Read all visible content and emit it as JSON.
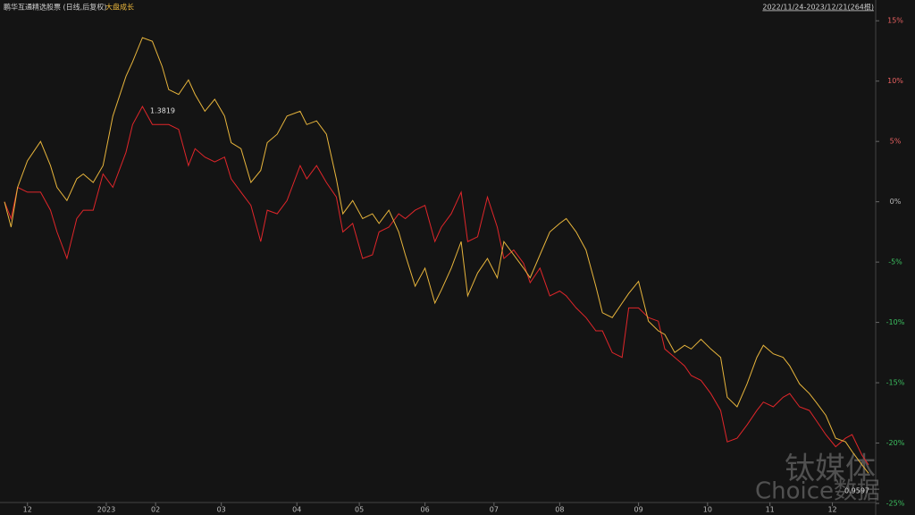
{
  "chart_data": {
    "type": "line",
    "title": "鹏华互通精选股票 (日线,后复权)",
    "range_label": "2022/11/24-2023/12/21(264根)",
    "annotations": [
      "1.3819",
      "0.9597"
    ],
    "watermark": [
      "钛媒体",
      "Choice数据"
    ],
    "x": [
      0,
      2,
      4,
      7,
      11,
      14,
      16,
      19,
      22,
      24,
      27,
      30,
      33,
      37,
      39,
      42,
      45,
      48,
      50,
      53,
      56,
      58,
      61,
      64,
      67,
      69,
      72,
      75,
      78,
      80,
      83,
      86,
      90,
      92,
      95,
      98,
      101,
      103,
      106,
      109,
      112,
      114,
      117,
      120,
      122,
      125,
      128,
      131,
      133,
      136,
      139,
      141,
      144,
      147,
      150,
      152,
      155,
      158,
      160,
      163,
      166,
      169,
      171,
      174,
      177,
      180,
      182,
      185,
      188,
      190,
      193,
      196,
      199,
      201,
      204,
      207,
      209,
      212,
      215,
      218,
      220,
      223,
      226,
      229,
      231,
      234,
      237,
      239,
      242,
      245,
      247,
      250,
      253,
      256,
      258,
      261,
      263
    ],
    "series": [
      {
        "name": "大盘成长",
        "color": "#e8b53c",
        "values": [
          0,
          -2.1,
          1.2,
          3.4,
          5.0,
          3,
          1.2,
          0.1,
          1.9,
          2.3,
          1.6,
          3,
          7.1,
          10.4,
          11.6,
          13.6,
          13.3,
          11.2,
          9.3,
          8.9,
          10.1,
          8.9,
          7.5,
          8.5,
          7.1,
          4.9,
          4.4,
          1.6,
          2.6,
          4.9,
          5.6,
          7.1,
          7.5,
          6.4,
          6.7,
          5.6,
          1.9,
          -1,
          0.1,
          -1.4,
          -1,
          -1.8,
          -0.7,
          -2.5,
          -4.4,
          -7,
          -5.5,
          -8.4,
          -7.3,
          -5.5,
          -3.3,
          -7.8,
          -5.9,
          -4.7,
          -6.3,
          -3.3,
          -4.4,
          -5.5,
          -6.3,
          -4.4,
          -2.5,
          -1.8,
          -1.4,
          -2.5,
          -4,
          -7,
          -9.2,
          -9.6,
          -8.4,
          -7.6,
          -6.6,
          -9.9,
          -10.7,
          -11,
          -12.5,
          -11.9,
          -12.2,
          -11.4,
          -12.2,
          -12.9,
          -16.2,
          -17,
          -15.1,
          -12.9,
          -11.9,
          -12.6,
          -12.9,
          -13.6,
          -15.1,
          -15.9,
          -16.6,
          -17.7,
          -19.6,
          -19.9,
          -20.7,
          -21.8,
          -22.5
        ]
      },
      {
        "name": "鹏华互通精选股票",
        "color": "#e0262a",
        "values": [
          0,
          -1.4,
          1.2,
          0.8,
          0.8,
          -0.7,
          -2.5,
          -4.7,
          -1.4,
          -0.7,
          -0.7,
          2.3,
          1.2,
          4.1,
          6.4,
          7.9,
          6.4,
          6.4,
          6.4,
          6,
          3,
          4.4,
          3.7,
          3.3,
          3.7,
          1.9,
          0.8,
          -0.3,
          -3.3,
          -0.7,
          -1,
          0.1,
          3,
          1.9,
          3,
          1.6,
          0.4,
          -2.5,
          -1.8,
          -4.7,
          -4.4,
          -2.5,
          -2.1,
          -1,
          -1.4,
          -0.7,
          -0.3,
          -3.3,
          -2.1,
          -1,
          0.8,
          -3.3,
          -2.9,
          0.4,
          -2.1,
          -4.7,
          -4,
          -5.1,
          -6.7,
          -5.5,
          -7.8,
          -7.4,
          -7.8,
          -8.8,
          -9.6,
          -10.7,
          -10.7,
          -12.5,
          -12.9,
          -8.8,
          -8.8,
          -9.6,
          -9.9,
          -12.2,
          -12.9,
          -13.6,
          -14.4,
          -14.8,
          -15.9,
          -17.3,
          -19.9,
          -19.6,
          -18.5,
          -17.3,
          -16.6,
          -17,
          -16.2,
          -15.9,
          -17,
          -17.3,
          -18.1,
          -19.3,
          -20.3,
          -19.6,
          -19.3,
          -21,
          -21.8
        ]
      }
    ],
    "xlim": [
      0,
      263
    ],
    "xticks": [
      {
        "value": 7,
        "label": "12"
      },
      {
        "value": 31,
        "label": "2023"
      },
      {
        "value": 46,
        "label": "02"
      },
      {
        "value": 66,
        "label": "03"
      },
      {
        "value": 89,
        "label": "04"
      },
      {
        "value": 108,
        "label": "05"
      },
      {
        "value": 128,
        "label": "06"
      },
      {
        "value": 149,
        "label": "07"
      },
      {
        "value": 169,
        "label": "08"
      },
      {
        "value": 193,
        "label": "09"
      },
      {
        "value": 214,
        "label": "10"
      },
      {
        "value": 233,
        "label": "11"
      },
      {
        "value": 252,
        "label": "12"
      }
    ],
    "ylim": [
      -25,
      16.5
    ],
    "yticks": [
      {
        "value": 15,
        "label": "15%"
      },
      {
        "value": 10,
        "label": "10%"
      },
      {
        "value": 5,
        "label": "5%"
      },
      {
        "value": 0,
        "label": "0%"
      },
      {
        "value": -5,
        "label": "-5%"
      },
      {
        "value": -10,
        "label": "-10%"
      },
      {
        "value": -15,
        "label": "-15%"
      },
      {
        "value": -20,
        "label": "-20%"
      },
      {
        "value": -25,
        "label": "-25%"
      }
    ]
  }
}
